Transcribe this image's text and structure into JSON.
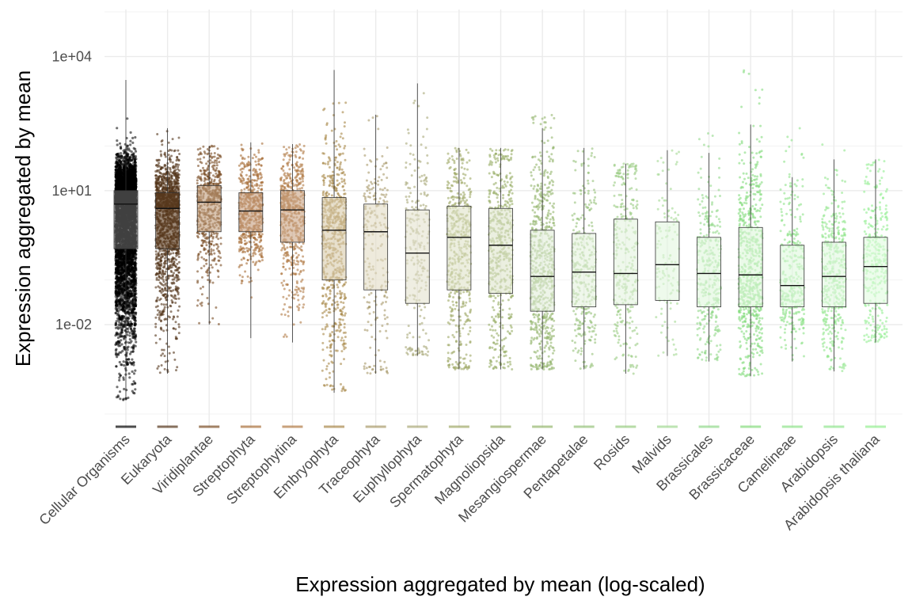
{
  "chart_data": {
    "type": "box",
    "overlay": "jittered points",
    "ylabel": "Expression aggregated by mean",
    "xlabel": "Expression aggregated by mean (log-scaled)",
    "y_scale": "log10",
    "y_ticks": [
      {
        "value": 0.01,
        "label": "1e-02"
      },
      {
        "value": 10,
        "label": "1e+01"
      },
      {
        "value": 10000,
        "label": "1e+04"
      }
    ],
    "ylim": [
      5e-05,
      100000
    ],
    "grid": true,
    "legend": "none",
    "categories": [
      "Cellular Organisms",
      "Eukaryota",
      "Viridiplantae",
      "Streptophyta",
      "Streptophytina",
      "Embryophyta",
      "Traceophyta",
      "Euphyllophyta",
      "Spermatophyta",
      "Magnoliopsida",
      "Mesangiospermae",
      "Pentapetalae",
      "Rosids",
      "Malvids",
      "Brassicales",
      "Brassicaceae",
      "Camelineae",
      "Arabidopsis",
      "Arabidopsis thaliana"
    ],
    "colors": [
      "#000000",
      "#54351a",
      "#7a4d24",
      "#a86f3a",
      "#b07a45",
      "#a8884a",
      "#a89a6a",
      "#a9a878",
      "#9fa866",
      "#97ad66",
      "#95b66e",
      "#96c27a",
      "#99cc82",
      "#a3d993",
      "#92d88a",
      "#86dc7e",
      "#8fe38a",
      "#92e68e",
      "#94ee92"
    ],
    "box_fills": [
      "#6b6b6b",
      "#5a3a1e",
      "#c09c7c",
      "#c79f7f",
      "#c9a384",
      "#d8ccac",
      "#e2dcc4",
      "#e4e2cf",
      "#dfe2c8",
      "#dde5cc",
      "#e1ecd8",
      "#e4f2de",
      "#e4f3e0",
      "#e3f6df",
      "#e0f6dc",
      "#ddf7da",
      "#e0f8dd",
      "#e1f9df",
      "#e1fbe0"
    ],
    "series": [
      {
        "category": "Cellular Organisms",
        "q1": 0.5,
        "median": 5,
        "q3": 10,
        "whisker_low": 0.0002,
        "whisker_high": 3000,
        "n_points": 6000,
        "max_point": 20000
      },
      {
        "category": "Eukaryota",
        "q1": 0.5,
        "median": 4,
        "q3": 9,
        "whisker_low": 0.0008,
        "whisker_high": 250,
        "n_points": 1400,
        "max_point": 250
      },
      {
        "category": "Viridiplantae",
        "q1": 1.2,
        "median": 5.5,
        "q3": 13,
        "whisker_low": 0.01,
        "whisker_high": 100,
        "n_points": 550,
        "max_point": 100
      },
      {
        "category": "Streptophyta",
        "q1": 1.2,
        "median": 3.5,
        "q3": 9,
        "whisker_low": 0.005,
        "whisker_high": 120,
        "n_points": 550,
        "max_point": 120
      },
      {
        "category": "Streptophytina",
        "q1": 0.7,
        "median": 3.7,
        "q3": 10,
        "whisker_low": 0.004,
        "whisker_high": 110,
        "n_points": 550,
        "max_point": 110
      },
      {
        "category": "Embryophyta",
        "q1": 0.1,
        "median": 1.3,
        "q3": 7,
        "whisker_low": 0.0003,
        "whisker_high": 5000,
        "n_points": 650,
        "max_point": 5000
      },
      {
        "category": "Traceophyta",
        "q1": 0.06,
        "median": 1.2,
        "q3": 5,
        "whisker_low": 0.0008,
        "whisker_high": 500,
        "n_points": 230,
        "max_point": 500
      },
      {
        "category": "Euphyllophyta",
        "q1": 0.03,
        "median": 0.4,
        "q3": 3.7,
        "whisker_low": 0.002,
        "whisker_high": 2500,
        "n_points": 230,
        "max_point": 2500
      },
      {
        "category": "Spermatophyta",
        "q1": 0.06,
        "median": 0.9,
        "q3": 4.5,
        "whisker_low": 0.001,
        "whisker_high": 90,
        "n_points": 500,
        "max_point": 90
      },
      {
        "category": "Magnoliopsida",
        "q1": 0.05,
        "median": 0.6,
        "q3": 4,
        "whisker_low": 0.001,
        "whisker_high": 90,
        "n_points": 500,
        "max_point": 90
      },
      {
        "category": "Mesangiospermae",
        "q1": 0.02,
        "median": 0.12,
        "q3": 1.3,
        "whisker_low": 0.001,
        "whisker_high": 250,
        "n_points": 650,
        "max_point": 500
      },
      {
        "category": "Pentapetalae",
        "q1": 0.025,
        "median": 0.15,
        "q3": 1.1,
        "whisker_low": 0.001,
        "whisker_high": 90,
        "n_points": 320,
        "max_point": 90
      },
      {
        "category": "Rosids",
        "q1": 0.028,
        "median": 0.14,
        "q3": 2.3,
        "whisker_low": 0.0008,
        "whisker_high": 40,
        "n_points": 300,
        "max_point": 40
      },
      {
        "category": "Malvids",
        "q1": 0.035,
        "median": 0.22,
        "q3": 2,
        "whisker_low": 0.002,
        "whisker_high": 80,
        "n_points": 120,
        "max_point": 80
      },
      {
        "category": "Brassicales",
        "q1": 0.025,
        "median": 0.14,
        "q3": 0.9,
        "whisker_low": 0.0015,
        "whisker_high": 70,
        "n_points": 320,
        "max_point": 1000
      },
      {
        "category": "Brassicaceae",
        "q1": 0.025,
        "median": 0.13,
        "q3": 1.5,
        "whisker_low": 0.0007,
        "whisker_high": 300,
        "n_points": 650,
        "max_point": 6000
      },
      {
        "category": "Camelineae",
        "q1": 0.025,
        "median": 0.075,
        "q3": 0.6,
        "whisker_low": 0.0015,
        "whisker_high": 20,
        "n_points": 320,
        "max_point": 250
      },
      {
        "category": "Arabidopsis",
        "q1": 0.025,
        "median": 0.12,
        "q3": 0.7,
        "whisker_low": 0.0009,
        "whisker_high": 50,
        "n_points": 420,
        "max_point": 150
      },
      {
        "category": "Arabidopsis thaliana",
        "q1": 0.03,
        "median": 0.2,
        "q3": 0.9,
        "whisker_low": 0.004,
        "whisker_high": 50,
        "n_points": 320,
        "max_point": 50
      }
    ]
  }
}
